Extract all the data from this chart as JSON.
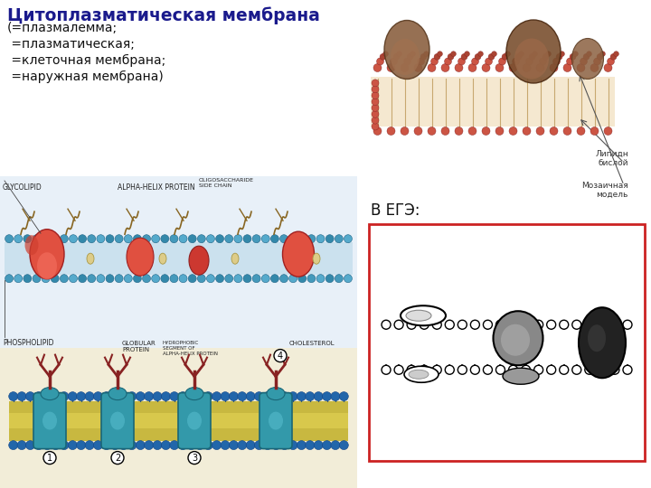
{
  "title": "Цитоплазматическая мембрана",
  "subtitle_lines": [
    "(=плазмалемма;",
    " =плазматическая;",
    " =клеточная мембрана;",
    " =наружная мембрана)"
  ],
  "egz_label": "В ЕГЭ:",
  "title_color": "#1a1a8c",
  "subtitle_color": "#111111",
  "background_color": "#ffffff",
  "box_color": "#cc2222",
  "label_top_right_1": "Липидн\nбислой",
  "label_top_right_2": "Мозаичная\nмодель"
}
